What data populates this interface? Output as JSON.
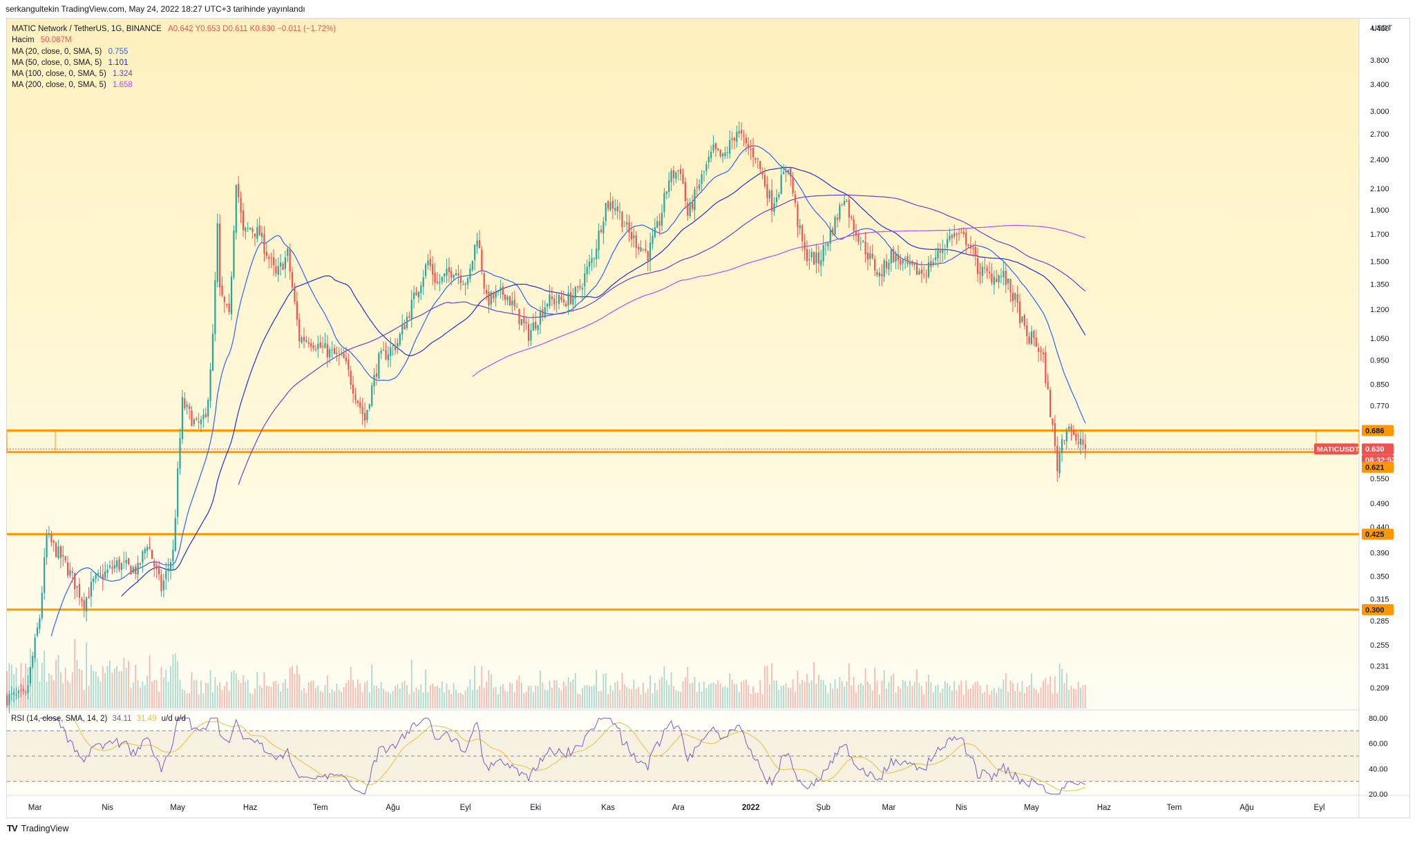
{
  "header": {
    "publish_line": "serkangultekin TradingView.com, May 24, 2022 18:27 UTC+3 tarihinde yayınlandı"
  },
  "legend": {
    "symbol_line": "MATIC Network / TetherUS, 1G, BINANCE",
    "ohlc": "A0.642 Y0.653 D0.611 K0.630 −0.011 (−1.72%)",
    "volume_label": "Hacim",
    "volume_value": "50.087M",
    "ma": [
      {
        "label": "MA (20, close, 0, SMA, 5)",
        "value": "0.755",
        "color": "#2962ff"
      },
      {
        "label": "MA (50, close, 0, SMA, 5)",
        "value": "1.101",
        "color": "#1e2fd0"
      },
      {
        "label": "MA (100, close, 0, SMA, 5)",
        "value": "1.324",
        "color": "#6a3fc7"
      },
      {
        "label": "MA (200, close, 0, SMA, 5)",
        "value": "1.658",
        "color": "#b34cf0"
      }
    ]
  },
  "rsi_legend": {
    "label": "RSI (14, close, SMA, 14, 2)",
    "value1": "34.11",
    "value2": "31.49",
    "extra": "u/d u/d"
  },
  "footer": {
    "brand": "TradingView",
    "logo": "TV"
  },
  "price_badges": [
    {
      "text": "0.686",
      "type": "level"
    },
    {
      "text": "0.630",
      "type": "last"
    },
    {
      "text": "08:32:52",
      "type": "timer"
    },
    {
      "text": "0.621",
      "type": "level"
    },
    {
      "text": "0.425",
      "type": "level"
    },
    {
      "text": "0.300",
      "type": "level"
    }
  ],
  "symbol_tag": "MATICUSDT",
  "colors": {
    "up": "#26a69a",
    "down": "#ef5350",
    "level": "#ff9800",
    "rsi": "#7e57c2",
    "rsi_ma": "#e6c33a"
  },
  "chart_data": {
    "type": "candlestick",
    "symbol": "MATICUSDT",
    "exchange": "BINANCE",
    "timeframe": "1G",
    "y_unit": "USDT",
    "y_scale": "log",
    "ylim": [
      0.19,
      4.6
    ],
    "y_ticks": [
      "4.400",
      "3.800",
      "3.400",
      "3.000",
      "2.700",
      "2.400",
      "2.100",
      "1.900",
      "1.700",
      "1.500",
      "1.350",
      "1.200",
      "1.050",
      "0.950",
      "0.850",
      "0.770",
      "0.550",
      "0.490",
      "0.440",
      "0.390",
      "0.350",
      "0.315",
      "0.285",
      "0.255",
      "0.231",
      "0.209"
    ],
    "x_ticks": [
      "Mar",
      "Nis",
      "May",
      "Haz",
      "Tem",
      "Ağu",
      "Eyl",
      "Eki",
      "Kas",
      "Ara",
      "2022",
      "Şub",
      "Mar",
      "Nis",
      "May",
      "Haz",
      "Tem",
      "Ağu",
      "Eyl"
    ],
    "x_range": [
      "2021-02-17",
      "2022-09-18"
    ],
    "last_date": "2022-05-24",
    "horizontal_levels": [
      0.686,
      0.621,
      0.425,
      0.3
    ],
    "last_price": 0.63,
    "ma_values": {
      "ma20": 0.755,
      "ma50": 1.101,
      "ma100": 1.324,
      "ma200": 1.658
    },
    "close_anchors": [
      [
        "2021-02-17",
        0.2
      ],
      [
        "2021-02-25",
        0.2
      ],
      [
        "2021-03-03",
        0.29
      ],
      [
        "2021-03-06",
        0.42
      ],
      [
        "2021-03-14",
        0.37
      ],
      [
        "2021-03-22",
        0.31
      ],
      [
        "2021-03-26",
        0.34
      ],
      [
        "2021-04-05",
        0.37
      ],
      [
        "2021-04-14",
        0.36
      ],
      [
        "2021-04-18",
        0.41
      ],
      [
        "2021-04-24",
        0.33
      ],
      [
        "2021-04-29",
        0.39
      ],
      [
        "2021-05-01",
        0.56
      ],
      [
        "2021-05-03",
        0.78
      ],
      [
        "2021-05-09",
        0.7
      ],
      [
        "2021-05-13",
        0.72
      ],
      [
        "2021-05-16",
        1.05
      ],
      [
        "2021-05-18",
        1.75
      ],
      [
        "2021-05-19",
        1.3
      ],
      [
        "2021-05-23",
        1.15
      ],
      [
        "2021-05-26",
        2.2
      ],
      [
        "2021-05-29",
        1.7
      ],
      [
        "2021-06-01",
        1.75
      ],
      [
        "2021-06-05",
        1.7
      ],
      [
        "2021-06-12",
        1.4
      ],
      [
        "2021-06-17",
        1.55
      ],
      [
        "2021-06-22",
        1.05
      ],
      [
        "2021-06-26",
        1.05
      ],
      [
        "2021-07-02",
        1.0
      ],
      [
        "2021-07-11",
        0.95
      ],
      [
        "2021-07-20",
        0.72
      ],
      [
        "2021-07-22",
        0.8
      ],
      [
        "2021-07-26",
        0.95
      ],
      [
        "2021-08-03",
        1.03
      ],
      [
        "2021-08-11",
        1.3
      ],
      [
        "2021-08-16",
        1.5
      ],
      [
        "2021-08-20",
        1.35
      ],
      [
        "2021-08-27",
        1.45
      ],
      [
        "2021-09-02",
        1.35
      ],
      [
        "2021-09-06",
        1.7
      ],
      [
        "2021-09-10",
        1.25
      ],
      [
        "2021-09-18",
        1.3
      ],
      [
        "2021-09-28",
        1.07
      ],
      [
        "2021-10-06",
        1.25
      ],
      [
        "2021-10-14",
        1.25
      ],
      [
        "2021-10-19",
        1.3
      ],
      [
        "2021-10-26",
        1.55
      ],
      [
        "2021-10-31",
        1.95
      ],
      [
        "2021-11-04",
        1.95
      ],
      [
        "2021-11-10",
        1.7
      ],
      [
        "2021-11-18",
        1.55
      ],
      [
        "2021-11-23",
        1.8
      ],
      [
        "2021-11-27",
        2.2
      ],
      [
        "2021-12-02",
        2.3
      ],
      [
        "2021-12-05",
        1.85
      ],
      [
        "2021-12-10",
        2.15
      ],
      [
        "2021-12-16",
        2.5
      ],
      [
        "2021-12-20",
        2.4
      ],
      [
        "2021-12-26",
        2.75
      ],
      [
        "2021-12-30",
        2.55
      ],
      [
        "2022-01-03",
        2.45
      ],
      [
        "2022-01-10",
        1.95
      ],
      [
        "2022-01-17",
        2.35
      ],
      [
        "2022-01-21",
        1.8
      ],
      [
        "2022-01-24",
        1.55
      ],
      [
        "2022-01-30",
        1.5
      ],
      [
        "2022-02-07",
        1.85
      ],
      [
        "2022-02-10",
        2.05
      ],
      [
        "2022-02-13",
        1.8
      ],
      [
        "2022-02-20",
        1.55
      ],
      [
        "2022-02-25",
        1.4
      ],
      [
        "2022-03-02",
        1.55
      ],
      [
        "2022-03-10",
        1.45
      ],
      [
        "2022-03-16",
        1.42
      ],
      [
        "2022-03-22",
        1.55
      ],
      [
        "2022-03-28",
        1.7
      ],
      [
        "2022-04-04",
        1.65
      ],
      [
        "2022-04-08",
        1.45
      ],
      [
        "2022-04-13",
        1.4
      ],
      [
        "2022-04-19",
        1.4
      ],
      [
        "2022-04-24",
        1.25
      ],
      [
        "2022-04-29",
        1.05
      ],
      [
        "2022-05-02",
        1.05
      ],
      [
        "2022-05-06",
        0.95
      ],
      [
        "2022-05-09",
        0.75
      ],
      [
        "2022-05-12",
        0.58
      ],
      [
        "2022-05-14",
        0.66
      ],
      [
        "2022-05-17",
        0.71
      ],
      [
        "2022-05-20",
        0.64
      ],
      [
        "2022-05-22",
        0.66
      ],
      [
        "2022-05-24",
        0.63
      ]
    ],
    "rsi": {
      "ylim": [
        20,
        80
      ],
      "bands": [
        70,
        50,
        30
      ],
      "y_ticks": [
        "80.00",
        "60.00",
        "40.00",
        "20.00"
      ],
      "last_rsi": 34.11,
      "last_rsi_ma": 31.49
    }
  }
}
